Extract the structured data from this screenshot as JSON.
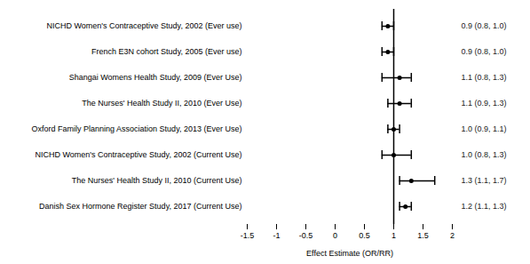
{
  "chart_data": {
    "type": "forest",
    "categories": [
      "NICHD Women's Contraceptive Study, 2002 (Ever use)",
      "French E3N cohort Study, 2005 (Ever use)",
      "Shangai Womens Health Study, 2009 (Ever Use)",
      "The Nurses' Health Study II, 2010 (Ever Use)",
      "Oxford Family Planning Association Study, 2013 (Ever Use)",
      "NICHD Women's Contraceptive Study, 2002 (Current Use)",
      "The Nurses' Health Study II, 2010 (Current Use)",
      "Danish Sex Hormone Register Study, 2017 (Current Use)"
    ],
    "values": [
      0.9,
      0.9,
      1.1,
      1.1,
      1.0,
      1.0,
      1.3,
      1.2
    ],
    "ci_lower": [
      0.8,
      0.8,
      0.8,
      0.9,
      0.9,
      0.8,
      1.1,
      1.1
    ],
    "ci_upper": [
      1.0,
      1.0,
      1.3,
      1.3,
      1.1,
      1.3,
      1.7,
      1.3
    ],
    "value_labels": [
      "0.9 (0.8, 1.0)",
      "0.9 (0.8, 1.0)",
      "1.1 (0.8, 1.3)",
      "1.1 (0.9, 1.3)",
      "1.0 (0.9, 1.1)",
      "1.0 (0.8, 1.3)",
      "1.3 (1.1, 1.7)",
      "1.2 (1.1, 1.3)"
    ],
    "data_labels": true,
    "xlabel": "Effect Estimate (OR/RR)",
    "xlim": [
      -1.5,
      2.0
    ],
    "xticks": [
      -1.5,
      -1,
      -0.5,
      0,
      0.5,
      1,
      1.5,
      2
    ],
    "reference_x": 1.0,
    "color": "#000000"
  }
}
